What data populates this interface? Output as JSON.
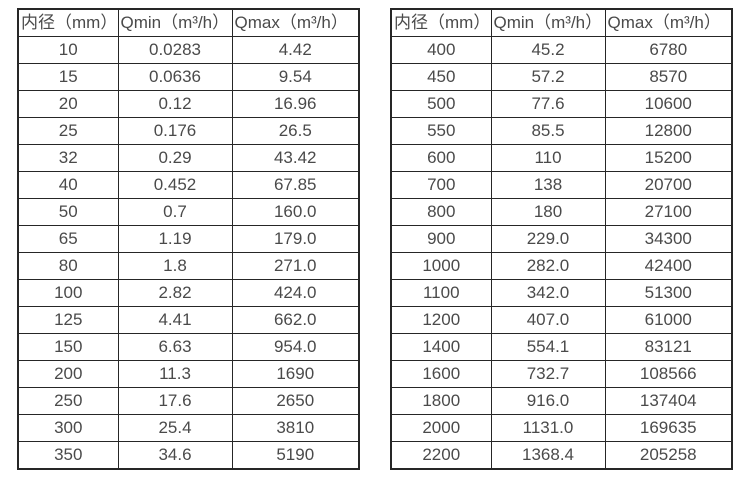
{
  "page": {
    "background_color": "#ffffff",
    "border_color": "#262626",
    "text_color": "#4a4a4a"
  },
  "left_table": {
    "headers": [
      "内径（mm）",
      "Qmin（m³/h）",
      "Qmax（m³/h）"
    ],
    "rows": [
      [
        "10",
        "0.0283",
        "4.42"
      ],
      [
        "15",
        "0.0636",
        "9.54"
      ],
      [
        "20",
        "0.12",
        "16.96"
      ],
      [
        "25",
        "0.176",
        "26.5"
      ],
      [
        "32",
        "0.29",
        "43.42"
      ],
      [
        "40",
        "0.452",
        "67.85"
      ],
      [
        "50",
        "0.7",
        "160.0"
      ],
      [
        "65",
        "1.19",
        "179.0"
      ],
      [
        "80",
        "1.8",
        "271.0"
      ],
      [
        "100",
        "2.82",
        "424.0"
      ],
      [
        "125",
        "4.41",
        "662.0"
      ],
      [
        "150",
        "6.63",
        "954.0"
      ],
      [
        "200",
        "11.3",
        "1690"
      ],
      [
        "250",
        "17.6",
        "2650"
      ],
      [
        "300",
        "25.4",
        "3810"
      ],
      [
        "350",
        "34.6",
        "5190"
      ]
    ]
  },
  "right_table": {
    "headers": [
      "内径（mm）",
      "Qmin（m³/h）",
      "Qmax（m³/h）"
    ],
    "rows": [
      [
        "400",
        "45.2",
        "6780"
      ],
      [
        "450",
        "57.2",
        "8570"
      ],
      [
        "500",
        "77.6",
        "10600"
      ],
      [
        "550",
        "85.5",
        "12800"
      ],
      [
        "600",
        "110",
        "15200"
      ],
      [
        "700",
        "138",
        "20700"
      ],
      [
        "800",
        "180",
        "27100"
      ],
      [
        "900",
        "229.0",
        "34300"
      ],
      [
        "1000",
        "282.0",
        "42400"
      ],
      [
        "1100",
        "342.0",
        "51300"
      ],
      [
        "1200",
        "407.0",
        "61000"
      ],
      [
        "1400",
        "554.1",
        "83121"
      ],
      [
        "1600",
        "732.7",
        "108566"
      ],
      [
        "1800",
        "916.0",
        "137404"
      ],
      [
        "2000",
        "1131.0",
        "169635"
      ],
      [
        "2200",
        "1368.4",
        "205258"
      ]
    ]
  }
}
